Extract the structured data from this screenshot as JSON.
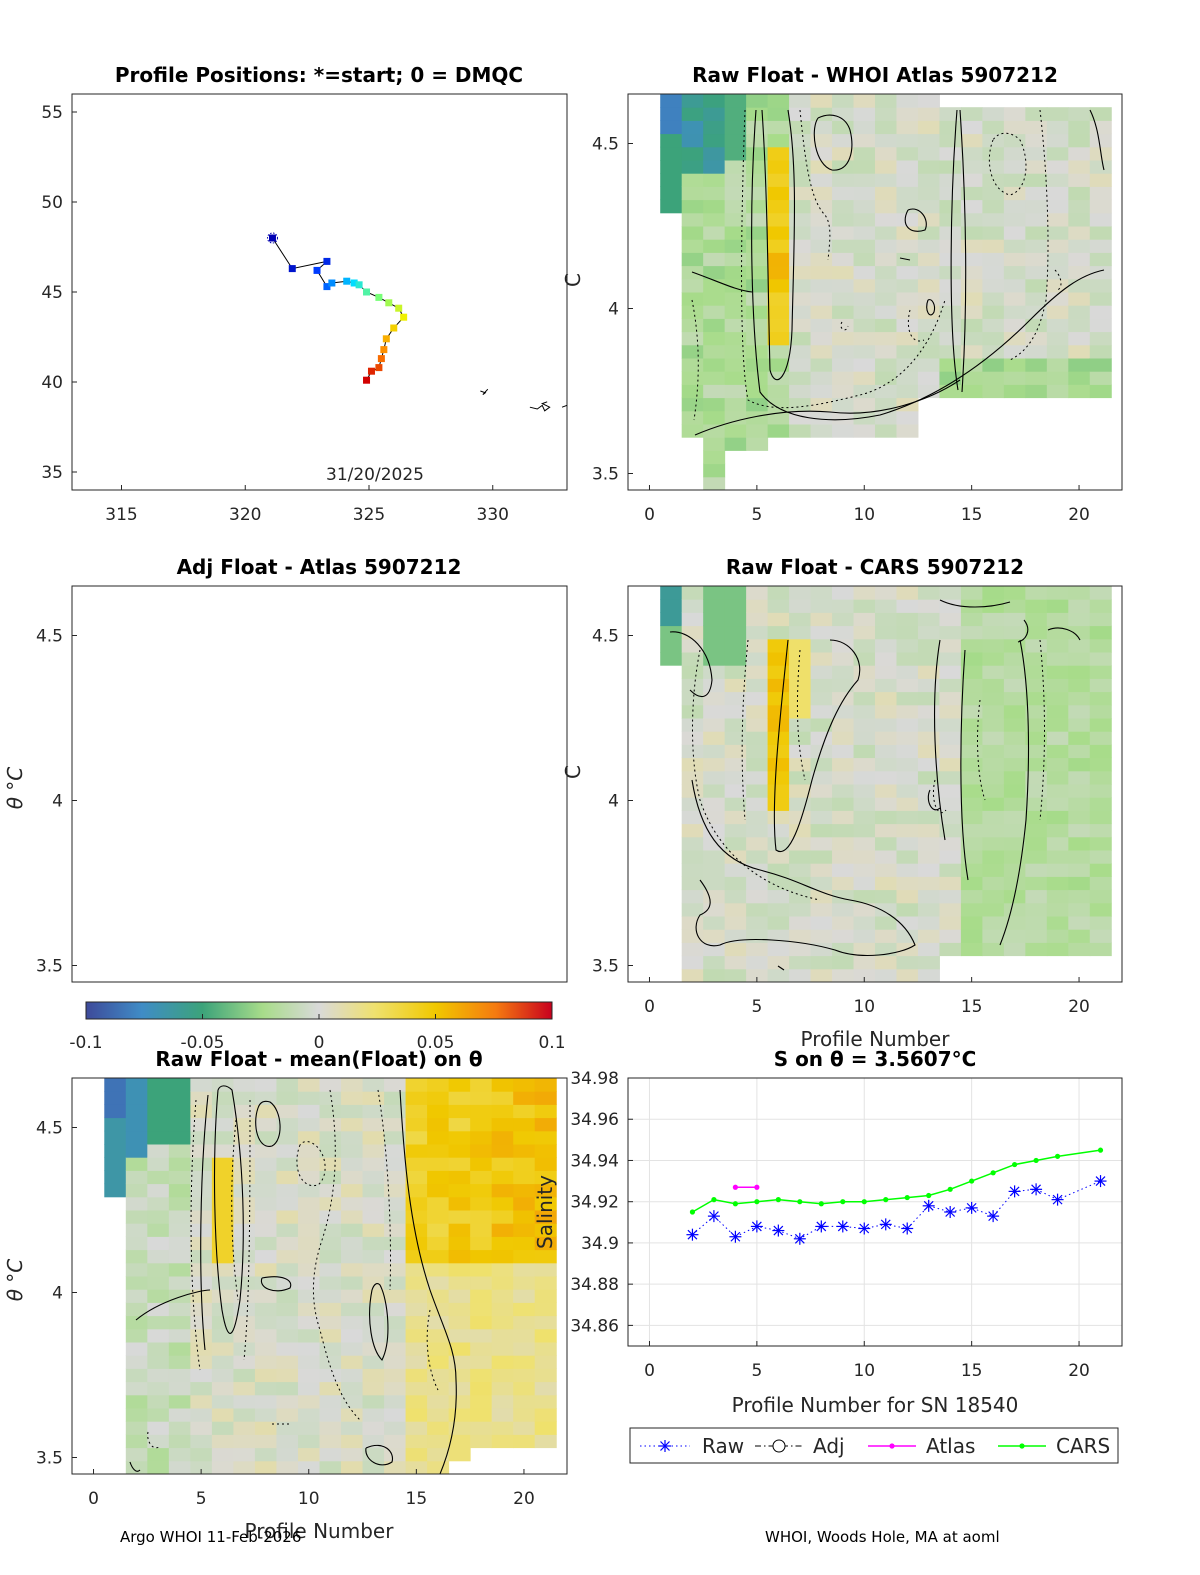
{
  "float_id": "5907212",
  "footer": {
    "left": "Argo WHOI 11-Feb-2026",
    "right": "WHOI, Woods Hole, MA at aoml"
  },
  "colorbar": {
    "ticks": [
      "-0.1",
      "-0.05",
      "0",
      "0.05",
      "0.1"
    ],
    "values": [
      -0.1,
      -0.05,
      0,
      0.05,
      0.1
    ]
  },
  "chart_data": [
    {
      "id": "positions",
      "type": "scatter",
      "title": "Profile Positions: *=start; 0 = DMQC",
      "date_label": "31/20/2025",
      "xlim": [
        313,
        333
      ],
      "ylim": [
        34,
        56
      ],
      "xticks": [
        315,
        320,
        325,
        330
      ],
      "yticks": [
        35,
        40,
        45,
        50,
        55
      ],
      "track_lon": [
        321.1,
        321.9,
        323.3,
        322.9,
        323.3,
        323.5,
        324.1,
        324.4,
        324.6,
        324.9,
        325.4,
        325.8,
        326.2,
        326.4,
        326.0,
        325.7,
        325.6,
        325.5,
        325.4,
        325.1,
        324.9
      ],
      "track_lat": [
        48.0,
        46.3,
        46.7,
        46.2,
        45.3,
        45.5,
        45.6,
        45.5,
        45.4,
        45.0,
        44.7,
        44.4,
        44.1,
        43.6,
        43.0,
        42.4,
        41.8,
        41.3,
        40.8,
        40.6,
        40.1
      ],
      "coast": [
        [
          [
            329.5,
            39.5
          ],
          [
            329.7,
            39.4
          ],
          [
            329.6,
            39.3
          ],
          [
            329.8,
            39.6
          ]
        ],
        [
          [
            331.5,
            38.6
          ],
          [
            331.8,
            38.5
          ],
          [
            332.0,
            38.7
          ],
          [
            332.1,
            38.4
          ],
          [
            332.3,
            38.6
          ],
          [
            332.0,
            38.8
          ],
          [
            332.2,
            38.9
          ]
        ],
        [
          [
            332.8,
            38.6
          ],
          [
            333.0,
            38.7
          ]
        ]
      ]
    },
    {
      "id": "whoi",
      "type": "heatmap",
      "title": "Raw Float - WHOI Atlas",
      "xlim": [
        -1,
        22
      ],
      "ylim": [
        3.45,
        4.65
      ],
      "xticks": [
        0,
        5,
        10,
        15,
        20
      ],
      "yticks": [
        3.5,
        4,
        4.5
      ],
      "ytick_labels": [
        "3.5",
        "4",
        "4.5"
      ],
      "ylabel_partial": "C"
    },
    {
      "id": "adj",
      "type": "heatmap",
      "title": "Adj Float - Atlas",
      "xlim": [
        -1,
        22
      ],
      "ylim": [
        3.45,
        4.65
      ],
      "yticks": [
        3.5,
        4,
        4.5
      ],
      "ytick_labels": [
        "3.5",
        "4",
        "4.5"
      ],
      "ylabel": "θ °C"
    },
    {
      "id": "cars",
      "type": "heatmap",
      "title": "Raw Float - CARS",
      "xlabel": "Profile Number",
      "xlim": [
        -1,
        22
      ],
      "ylim": [
        3.45,
        4.65
      ],
      "xticks": [
        0,
        5,
        10,
        15,
        20
      ],
      "yticks": [
        3.5,
        4,
        4.5
      ],
      "ytick_labels": [
        "3.5",
        "4",
        "4.5"
      ],
      "ylabel_partial": "C"
    },
    {
      "id": "mean",
      "type": "heatmap",
      "title": "Raw Float - mean(Float) on θ",
      "xlabel": "Profile Number",
      "ylabel": "θ °C",
      "xlim": [
        -1,
        22
      ],
      "ylim": [
        3.45,
        4.65
      ],
      "xticks": [
        0,
        5,
        10,
        15,
        20
      ],
      "yticks": [
        3.5,
        4,
        4.5
      ],
      "ytick_labels": [
        "3.5",
        "4",
        "4.5"
      ]
    },
    {
      "id": "salinity",
      "type": "line",
      "title": "S on θ = 3.5607°C",
      "xlabel": "Profile Number for SN 18540",
      "ylabel": "Salinity",
      "xlim": [
        -1,
        22
      ],
      "ylim": [
        34.85,
        34.98
      ],
      "xticks": [
        0,
        5,
        10,
        15,
        20
      ],
      "yticks": [
        34.86,
        34.88,
        34.9,
        34.92,
        34.94,
        34.96,
        34.98
      ],
      "ytick_labels": [
        "34.86",
        "34.88",
        "34.9",
        "34.92",
        "34.94",
        "34.96",
        "34.98"
      ],
      "series": [
        {
          "name": "Raw",
          "color": "#0000ff",
          "x": [
            2,
            3,
            4,
            5,
            6,
            7,
            8,
            9,
            10,
            11,
            12,
            13,
            14,
            15,
            16,
            17,
            18,
            19,
            21
          ],
          "values": [
            34.904,
            34.913,
            34.903,
            34.908,
            34.906,
            34.902,
            34.908,
            34.908,
            34.907,
            34.909,
            34.907,
            34.918,
            34.915,
            34.917,
            34.913,
            34.925,
            34.926,
            34.921,
            34.93
          ]
        },
        {
          "name": "Adj",
          "color": "#000000",
          "x": [],
          "values": []
        },
        {
          "name": "Atlas",
          "color": "#ff00ff",
          "x": [
            4,
            5
          ],
          "values": [
            34.927,
            34.927
          ]
        },
        {
          "name": "CARS",
          "color": "#00ff00",
          "x": [
            2,
            3,
            4,
            5,
            6,
            7,
            8,
            9,
            10,
            11,
            12,
            13,
            14,
            15,
            16,
            17,
            18,
            19,
            21
          ],
          "values": [
            34.915,
            34.921,
            34.919,
            34.92,
            34.921,
            34.92,
            34.919,
            34.92,
            34.92,
            34.921,
            34.922,
            34.923,
            34.926,
            34.93,
            34.934,
            34.938,
            34.94,
            34.942,
            34.945
          ]
        }
      ]
    }
  ]
}
